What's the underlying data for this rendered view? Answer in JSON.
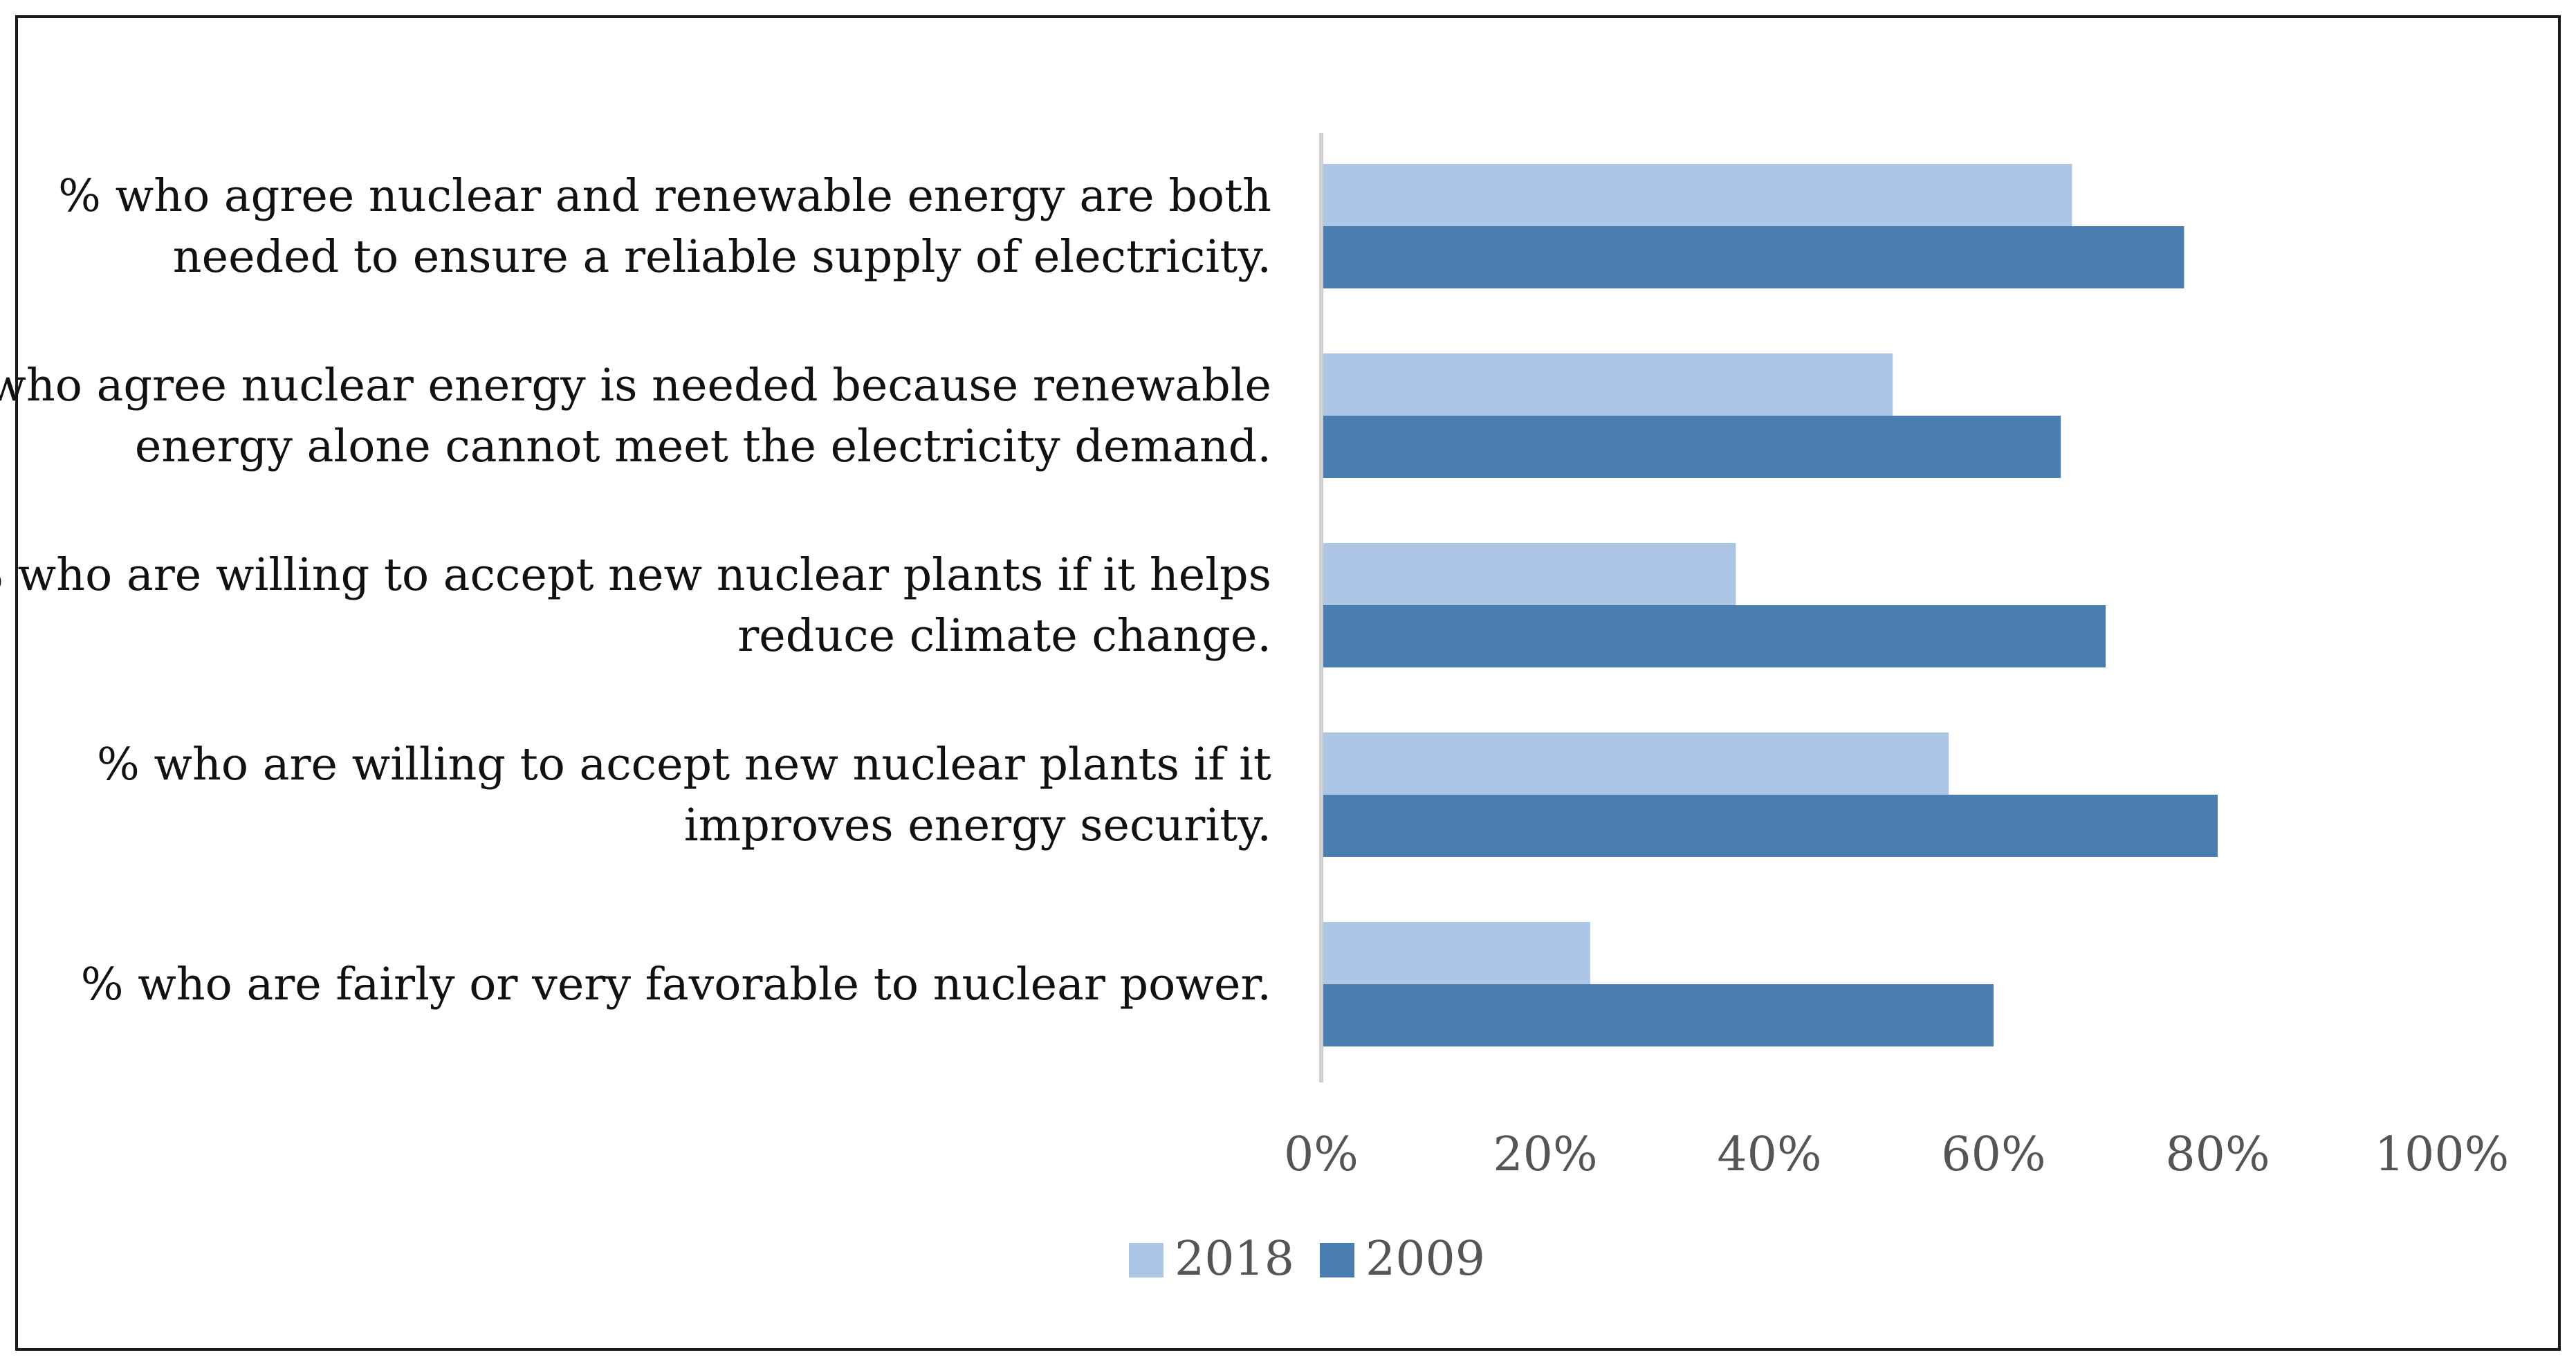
{
  "chart_data": {
    "type": "bar",
    "orientation": "horizontal",
    "title": "",
    "xlabel": "",
    "ylabel": "",
    "xlim": [
      0,
      100
    ],
    "x_ticks": [
      "0%",
      "20%",
      "40%",
      "60%",
      "80%",
      "100%"
    ],
    "grid": false,
    "legend_position": "bottom-center",
    "categories": [
      [
        "% who agree nuclear and renewable energy are both",
        "needed to ensure a reliable supply of electricity."
      ],
      [
        "% who agree nuclear energy is needed because renewable",
        "energy alone cannot meet the electricity demand."
      ],
      [
        "% who are willing to accept new nuclear plants if it helps",
        "reduce climate change."
      ],
      [
        "% who are willing to accept new nuclear plants if it",
        "improves energy security."
      ],
      [
        "% who are fairly or very favorable to nuclear power."
      ]
    ],
    "series": [
      {
        "name": "2018",
        "color": "#aec6e6",
        "values": [
          67,
          51,
          37,
          56,
          24
        ]
      },
      {
        "name": "2009",
        "color": "#4a7eb0",
        "values": [
          77,
          66,
          70,
          80,
          60
        ]
      }
    ]
  }
}
